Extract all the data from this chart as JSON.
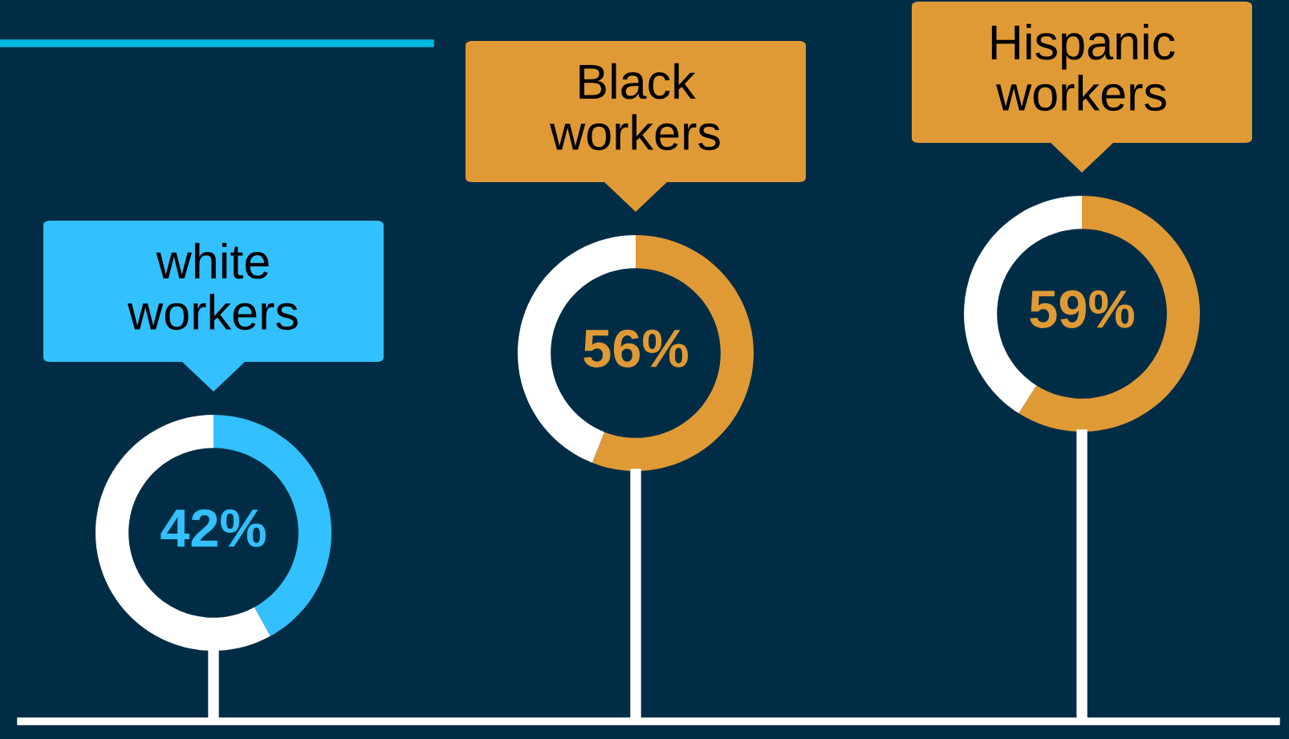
{
  "chart_data": [
    {
      "type": "donut",
      "title": "white\nworkers",
      "categories": [
        null,
        null
      ],
      "values": [
        42,
        58
      ],
      "colors": [
        "#33c0ff",
        "#ffffff"
      ],
      "value_labels": [
        "42%",
        null
      ]
    },
    {
      "type": "donut",
      "title": "Black\nworkers",
      "categories": [
        null,
        null
      ],
      "values": [
        56,
        44
      ],
      "colors": [
        "#e09a35",
        "#ffffff"
      ],
      "value_labels": [
        "56%",
        null
      ]
    },
    {
      "type": "donut",
      "title": "Hispanic\nworkers",
      "categories": [
        null,
        null
      ],
      "values": [
        59,
        41
      ],
      "colors": [
        "#e09a35",
        "#ffffff"
      ],
      "value_labels": [
        "59%",
        null
      ]
    }
  ]
}
